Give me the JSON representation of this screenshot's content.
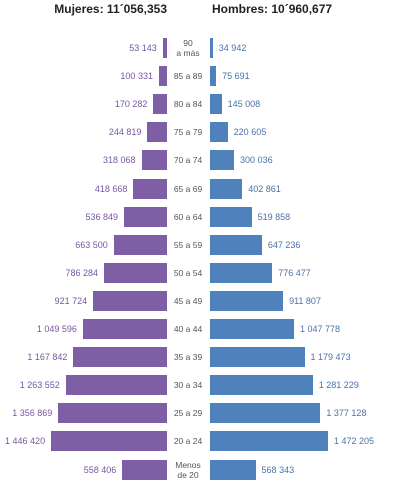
{
  "chart_data": {
    "type": "pyramid",
    "categories": [
      "90\na más",
      "85 a 89",
      "80 a 84",
      "75 a 79",
      "70 a 74",
      "65 a 69",
      "60 a 64",
      "55 a 59",
      "50 a 54",
      "45 a 49",
      "40 a 44",
      "35 a 39",
      "30 a 34",
      "25 a 29",
      "20 a 24",
      "Menos\nde 20"
    ],
    "series": [
      {
        "name": "Mujeres: 11´056,353",
        "color": "#7e5fa6",
        "values": [
          53143,
          100331,
          170282,
          244819,
          318068,
          418668,
          536849,
          663500,
          786284,
          921724,
          1049596,
          1167842,
          1263552,
          1356869,
          1446420,
          558406
        ],
        "value_labels": [
          "53 143",
          "100 331",
          "170 282",
          "244 819",
          "318 068",
          "418 668",
          "536 849",
          "663 500",
          "786 284",
          "921 724",
          "1 049 596",
          "1 167 842",
          "1 263 552",
          "1 356 869",
          "1 446 420",
          "558 406"
        ]
      },
      {
        "name": "Hombres: 10´960,677",
        "color": "#4f81bd",
        "values": [
          34942,
          75691,
          145008,
          220605,
          300036,
          402861,
          519858,
          647236,
          776477,
          911807,
          1047778,
          1179473,
          1281229,
          1377128,
          1472205,
          568343
        ],
        "value_labels": [
          "34 942",
          "75 691",
          "145 008",
          "220 605",
          "300 036",
          "402 861",
          "519 858",
          "647 236",
          "776 477",
          "911 807",
          "1 047 778",
          "1 179 473",
          "1 281 229",
          "1 377 128",
          "1 472 205",
          "568 343"
        ]
      }
    ]
  }
}
